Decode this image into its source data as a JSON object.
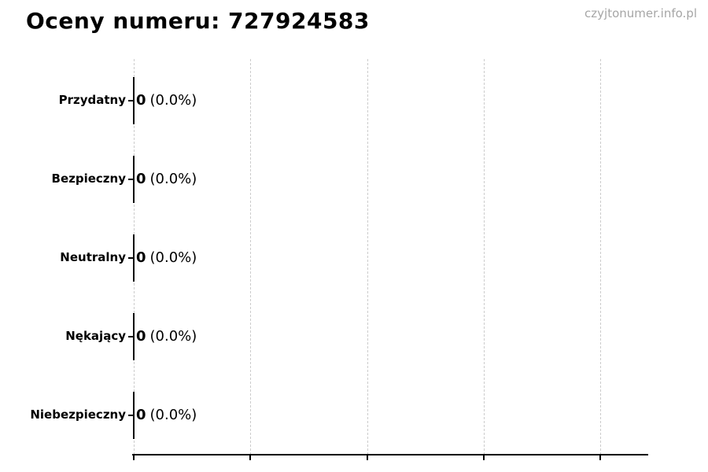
{
  "title": "Oceny numeru: 727924583",
  "watermark": "czyjtonumer.info.pl",
  "colors": {
    "background": "#ffffff",
    "text": "#000000",
    "watermark": "#a6a6a6",
    "gridline": "#cccccc",
    "axis": "#000000",
    "bar_edge": "#000000"
  },
  "chart_data": {
    "type": "bar",
    "orientation": "horizontal",
    "title": "Oceny numeru: 727924583",
    "categories": [
      "Przydatny",
      "Bezpieczny",
      "Neutralny",
      "Nękający",
      "Niebezpieczny"
    ],
    "values": [
      0,
      0,
      0,
      0,
      0
    ],
    "percentages": [
      0.0,
      0.0,
      0.0,
      0.0,
      0.0
    ],
    "bar_labels": [
      "0 (0.0%)",
      "0 (0.0%)",
      "0 (0.0%)",
      "0 (0.0%)",
      "0 (0.0%)"
    ],
    "xlabel": "",
    "ylabel": "",
    "x_tick_labels_visible": false,
    "grid": "vertical dashed gridlines, 5 ticks",
    "legend": "none"
  },
  "rows": [
    {
      "label": "Przydatny",
      "count": "0",
      "pct": "(0.0%)"
    },
    {
      "label": "Bezpieczny",
      "count": "0",
      "pct": "(0.0%)"
    },
    {
      "label": "Neutralny",
      "count": "0",
      "pct": "(0.0%)"
    },
    {
      "label": "Nękający",
      "count": "0",
      "pct": "(0.0%)"
    },
    {
      "label": "Niebezpieczny",
      "count": "0",
      "pct": "(0.0%)"
    }
  ]
}
